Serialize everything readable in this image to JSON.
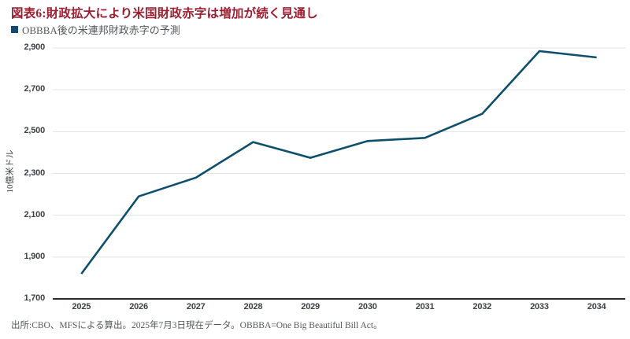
{
  "header": {
    "title": "図表6:財政拡大により米国財政赤字は増加が続く見通し",
    "subtitle": "OBBBA後の米連邦財政赤字の予測"
  },
  "footer": {
    "source_note": "出所:CBO、MFSによる算出。2025年7月3日現在データ。OBBBA=One Big Beautiful Bill Act。"
  },
  "colors": {
    "title_red": "#9B1F31",
    "legend_navy": "#16496B",
    "line_blue": "#0E4F6D",
    "grid_gray": "#E2E3E4",
    "axis_dark": "#2A2B2E",
    "tick_text": "#3B4144",
    "note_gray": "#55575B"
  },
  "chart_data": {
    "type": "line",
    "title": "OBBBA後の米連邦財政赤字の予測",
    "categories": [
      "2025",
      "2026",
      "2027",
      "2028",
      "2029",
      "2030",
      "2031",
      "2032",
      "2033",
      "2034"
    ],
    "series": [
      {
        "name": "米連邦財政赤字の予測",
        "values": [
          1820,
          2190,
          2280,
          2450,
          2375,
          2455,
          2470,
          2585,
          2885,
          2855
        ]
      }
    ],
    "xlabel": "",
    "ylabel": "10億米ドル",
    "ylim": [
      1700,
      2900
    ],
    "ytick_step": 200,
    "ytick_labels": [
      "1,700",
      "1,900",
      "2,100",
      "2,300",
      "2,500",
      "2,700",
      "2,900"
    ],
    "grid": "horizontal",
    "legend_position": "top-left"
  }
}
